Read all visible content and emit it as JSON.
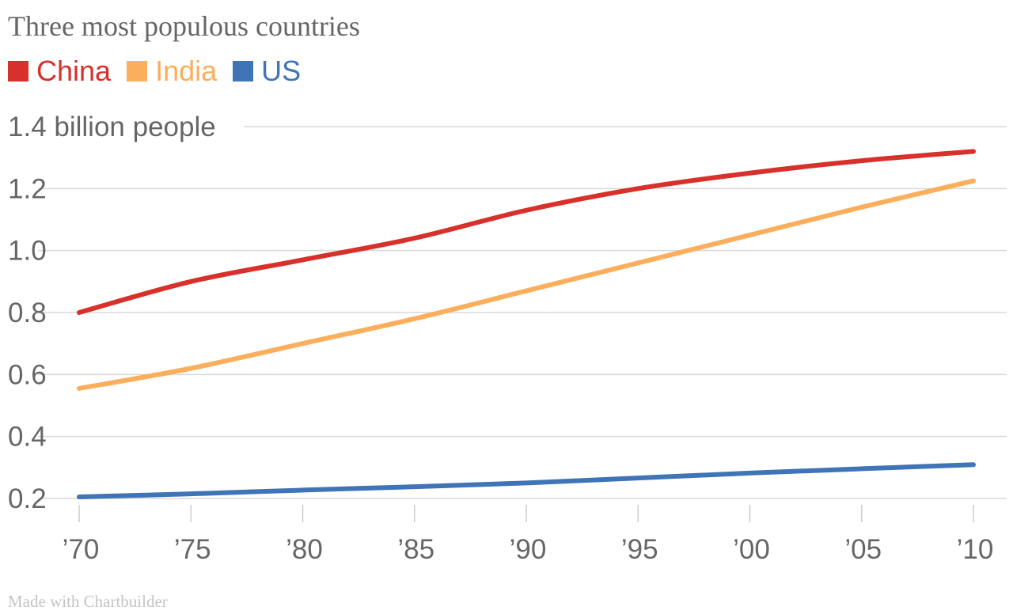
{
  "chart_data": {
    "type": "line",
    "title": "Three most populous countries",
    "ylabel": "billion people",
    "y_top_tick_label": "1.4 billion people",
    "x": [
      1970,
      1975,
      1980,
      1985,
      1990,
      1995,
      2000,
      2005,
      2010
    ],
    "x_tick_labels": [
      "’70",
      "’75",
      "’80",
      "’85",
      "’90",
      "’95",
      "’00",
      "’05",
      "’10"
    ],
    "yticks": [
      0.2,
      0.4,
      0.6,
      0.8,
      1.0,
      1.2,
      1.4
    ],
    "ytick_labels": [
      "0.2",
      "0.4",
      "0.6",
      "0.8",
      "1.0",
      "1.2",
      "1.4 billion people"
    ],
    "ylim": [
      0.2,
      1.4
    ],
    "xlim": [
      1970,
      2010
    ],
    "grid": true,
    "legend_position": "top-left",
    "series": [
      {
        "name": "China",
        "color": "#d8302a",
        "values": [
          0.8,
          0.9,
          0.97,
          1.04,
          1.13,
          1.2,
          1.25,
          1.29,
          1.32
        ]
      },
      {
        "name": "India",
        "color": "#fbae5c",
        "values": [
          0.555,
          0.62,
          0.7,
          0.78,
          0.87,
          0.96,
          1.05,
          1.14,
          1.225
        ]
      },
      {
        "name": "US",
        "color": "#3f74b6",
        "values": [
          0.205,
          0.215,
          0.227,
          0.238,
          0.25,
          0.266,
          0.282,
          0.296,
          0.309
        ]
      }
    ]
  },
  "footer": "Made with Chartbuilder"
}
